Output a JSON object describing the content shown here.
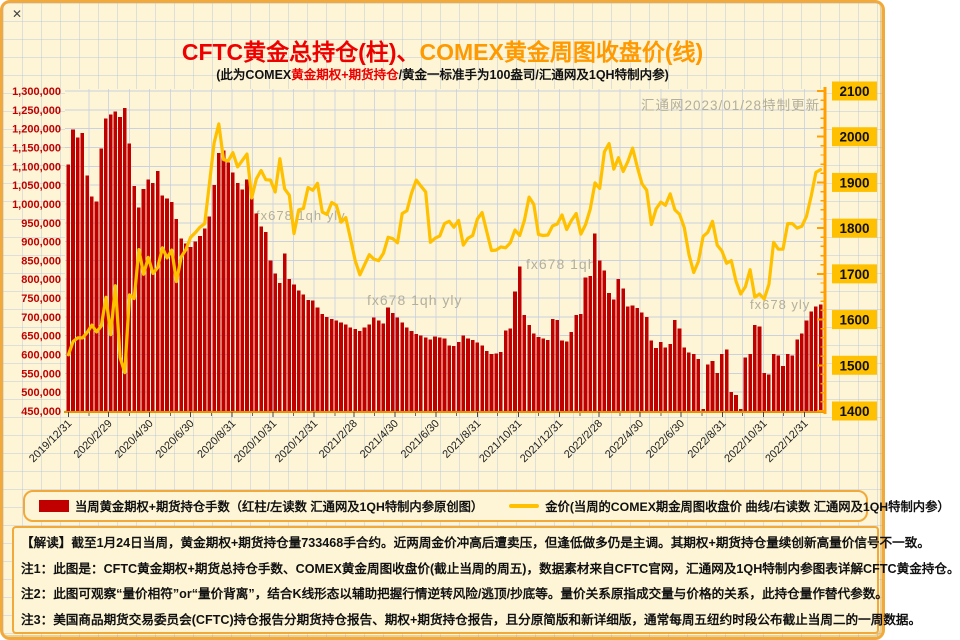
{
  "window": {
    "close_glyph": "✕"
  },
  "title": {
    "part1": "CFTC黄金总持仓(柱)、",
    "part2": "COMEX黄金周图收盘价(线)"
  },
  "subtitle": {
    "pre": "(此为COMEX",
    "highlight": "黄金期权+期货持仓",
    "post": "/黄金一标准手为100盎司/汇通网及1QH特制内参)"
  },
  "legend": {
    "bars_label": "当周黄金期权+期货持仓手数（红柱/左读数 汇通网及1QH特制内参原创图）",
    "line_label": "金价(当周的COMEX期金周图收盘价 曲线/右读数 汇通网及1QH特制内参）"
  },
  "notes": {
    "interpretation": "【解读】截至1月24日当周，黄金期权+期货持仓量733468手合约。近两周金价冲高后遭卖压，但逢低做多仍是主调。其期权+期货持仓量续创新高量价信号不一致。",
    "note1": "注1：此图是：CFTC黄金期权+期货总持仓手数、COMEX黄金周图收盘价(截止当周的周五)，数据素材来自CFTC官网，汇通网及1QH特制内参图表详解CFTC黄金持仓。",
    "note2": "注2：此图可观察“量价相符”or“量价背离”，结合K线形态以辅助把握行情逆转风险/逃顶/抄底等。量价关系原指成交量与价格的关系，此持仓量作替代参数。",
    "note3": "注3：美国商品期货交易委员会(CFTC)持仓报告分期货持仓报告、期权+期货持仓报告，且分原简版和新详细版，通常每周五纽约时段公布截止当周二的一周数据。"
  },
  "chart_data": {
    "type": "bar+line",
    "title": "CFTC黄金总持仓(柱)、COMEX黄金周图收盘价(线)",
    "frequency": "weekly",
    "start_date": "2019/12/31",
    "end_date": "2023/1/24",
    "x_tick_labels": [
      "2019/12/31",
      "2020/2/29",
      "2020/4/30",
      "2020/6/30",
      "2020/8/31",
      "2020/10/31",
      "2020/12/31",
      "2021/2/28",
      "2021/4/30",
      "2021/6/30",
      "2021/8/31",
      "2021/10/31",
      "2021/12/31",
      "2022/2/28",
      "2022/4/30",
      "2022/6/30",
      "2022/8/31",
      "2022/10/31",
      "2022/12/31"
    ],
    "left_axis": {
      "min": 450000,
      "max": 1300000,
      "step": 50000,
      "tick_labels": [
        "1,300,000",
        "1,250,000",
        "1,200,000",
        "1,150,000",
        "1,100,000",
        "1,050,000",
        "1,000,000",
        "950,000",
        "900,000",
        "850,000",
        "800,000",
        "750,000",
        "700,000",
        "650,000",
        "600,000",
        "550,000",
        "500,000",
        "450,000"
      ]
    },
    "right_axis": {
      "min": 1400,
      "max": 2100,
      "step": 100,
      "minor_step": 20,
      "tick_labels": [
        "2100",
        "2000",
        "1900",
        "1800",
        "1700",
        "1600",
        "1500",
        "1400"
      ]
    },
    "grid": true,
    "legend_position": "bottom",
    "series": [
      {
        "name": "当周黄金期权+期货持仓手数",
        "type": "bar",
        "axis": "left",
        "color": "#C00000",
        "values": [
          1105000,
          1198000,
          1177000,
          1189000,
          1076000,
          1020000,
          1007000,
          1147000,
          1227000,
          1237000,
          1246000,
          1231000,
          1255000,
          1160000,
          1048000,
          990000,
          1040000,
          1065000,
          1055000,
          1088000,
          1022000,
          1015000,
          1005000,
          960000,
          908000,
          895000,
          885000,
          900000,
          915000,
          935000,
          967000,
          1050000,
          1135000,
          1142000,
          1110000,
          1083000,
          1056000,
          1038000,
          1065000,
          1020000,
          975000,
          940000,
          925000,
          850000,
          815000,
          790000,
          868000,
          800000,
          786000,
          770000,
          760000,
          745000,
          743000,
          725000,
          707000,
          700000,
          695000,
          690000,
          685000,
          680000,
          672000,
          668000,
          663000,
          672000,
          680000,
          698000,
          690000,
          682000,
          725000,
          710000,
          698000,
          685000,
          672000,
          663000,
          655000,
          650000,
          645000,
          640000,
          648000,
          645000,
          642000,
          624000,
          622000,
          633000,
          651000,
          642000,
          638000,
          632000,
          624000,
          610000,
          601000,
          603000,
          607000,
          664000,
          669000,
          768000,
          834000,
          705000,
          678000,
          656000,
          646000,
          642000,
          638000,
          695000,
          692000,
          637000,
          635000,
          660000,
          705000,
          707000,
          805000,
          809000,
          921000,
          850000,
          823000,
          764000,
          746000,
          800000,
          775000,
          728000,
          730000,
          723000,
          712000,
          700000,
          637000,
          618000,
          633000,
          619000,
          628000,
          692000,
          669000,
          619000,
          606000,
          601000,
          588000,
          455000,
          574000,
          583000,
          551000,
          601000,
          613000,
          501000,
          492000,
          455000,
          592000,
          601000,
          678000,
          674000,
          551000,
          547000,
          601000,
          598000,
          570000,
          601000,
          598000,
          640000,
          656000,
          690000,
          714000,
          728000,
          733468
        ]
      },
      {
        "name": "金价(当周的COMEX期金周图收盘价)",
        "type": "line",
        "axis": "right",
        "color": "#FFC000",
        "values": [
          1523,
          1552,
          1560,
          1560,
          1572,
          1588,
          1573,
          1586,
          1649,
          1567,
          1674,
          1517,
          1484,
          1654,
          1646,
          1753,
          1699,
          1736,
          1701,
          1714,
          1757,
          1735,
          1752,
          1683,
          1737,
          1753,
          1780,
          1790,
          1802,
          1810,
          1897,
          1986,
          2028,
          1950,
          1947,
          1965,
          1934,
          1948,
          1962,
          1866,
          1908,
          1926,
          1906,
          1905,
          1879,
          1952,
          1886,
          1872,
          1788,
          1840,
          1843,
          1889,
          1883,
          1898,
          1835,
          1830,
          1856,
          1850,
          1813,
          1823,
          1777,
          1729,
          1698,
          1720,
          1742,
          1732,
          1729,
          1745,
          1780,
          1777,
          1768,
          1832,
          1838,
          1877,
          1905,
          1892,
          1879,
          1769,
          1778,
          1783,
          1810,
          1815,
          1802,
          1817,
          1763,
          1778,
          1784,
          1820,
          1834,
          1792,
          1751,
          1752,
          1759,
          1757,
          1768,
          1796,
          1784,
          1817,
          1868,
          1852,
          1786,
          1784,
          1785,
          1805,
          1809,
          1829,
          1797,
          1817,
          1832,
          1787,
          1808,
          1842,
          1899,
          1887,
          1967,
          1985,
          1929,
          1954,
          1924,
          1946,
          1975,
          1934,
          1897,
          1883,
          1808,
          1842,
          1857,
          1850,
          1875,
          1840,
          1830,
          1801,
          1742,
          1703,
          1727,
          1782,
          1791,
          1815,
          1763,
          1750,
          1723,
          1729,
          1684,
          1656,
          1672,
          1709,
          1649,
          1656,
          1645,
          1677,
          1769,
          1754,
          1754,
          1810,
          1810,
          1800,
          1804,
          1826,
          1870,
          1922,
          1928
        ]
      }
    ],
    "annotations": [
      {
        "text": "汇通网2023/01/28特制更新",
        "x": 638,
        "y": 107,
        "size": 13.5
      },
      {
        "text": "fx678 1qh yly",
        "x": 253,
        "y": 217,
        "size": 13
      },
      {
        "text": "fx678 1qh",
        "x": 523,
        "y": 266,
        "size": 14
      },
      {
        "text": "fx678 1qh yly",
        "x": 364,
        "y": 302,
        "size": 14
      },
      {
        "text": "fx678 yly",
        "x": 747,
        "y": 306,
        "size": 13
      }
    ],
    "final_value_note": "733468"
  },
  "colors": {
    "bar": "#C00000",
    "line": "#FFC000",
    "title_red": "#EE0000",
    "title_orange": "#FF9900",
    "box_border": "#F2A93B",
    "left_axis_text": "#C00000",
    "right_axis_chip": "#FFC000",
    "watermark": "#b3af9e",
    "background": "#FDF5D6"
  }
}
